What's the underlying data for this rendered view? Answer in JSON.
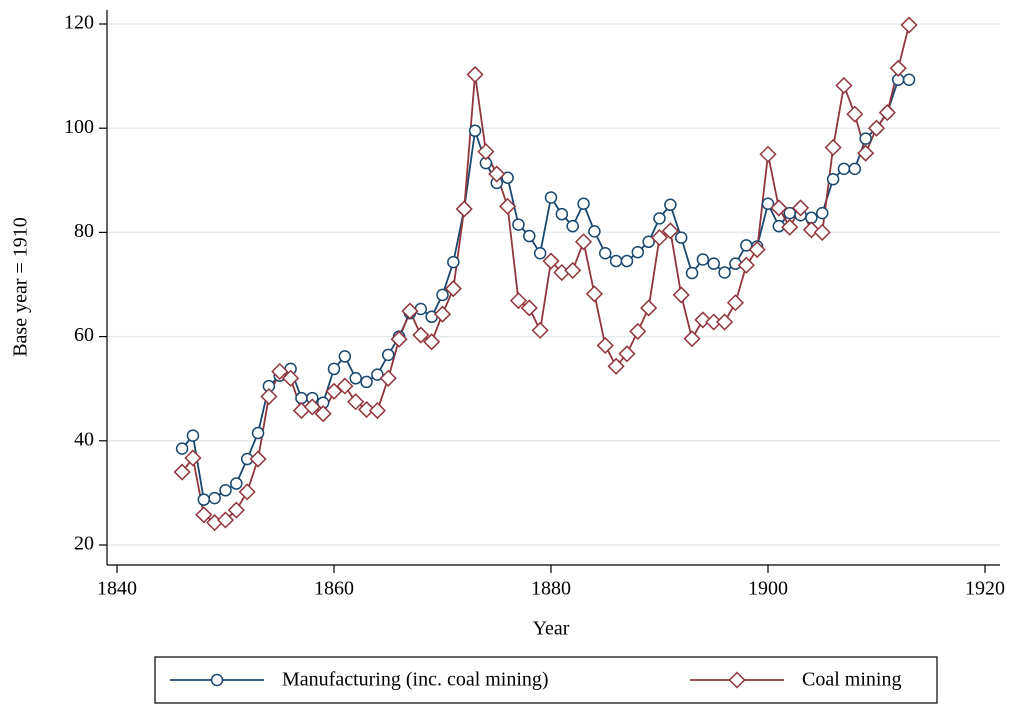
{
  "chart_data": {
    "type": "line",
    "x_label": "Year",
    "y_label": "Base year = 1910",
    "x": [
      1846,
      1847,
      1848,
      1849,
      1850,
      1851,
      1852,
      1853,
      1854,
      1855,
      1856,
      1857,
      1858,
      1859,
      1860,
      1861,
      1862,
      1863,
      1864,
      1865,
      1866,
      1867,
      1868,
      1869,
      1870,
      1871,
      1872,
      1873,
      1874,
      1875,
      1876,
      1877,
      1878,
      1879,
      1880,
      1881,
      1882,
      1883,
      1884,
      1885,
      1886,
      1887,
      1888,
      1889,
      1890,
      1891,
      1892,
      1893,
      1894,
      1895,
      1896,
      1897,
      1898,
      1899,
      1900,
      1901,
      1902,
      1903,
      1904,
      1905,
      1906,
      1907,
      1908,
      1909,
      1910,
      1911,
      1912,
      1913
    ],
    "series": [
      {
        "name": "Manufacturing (inc. coal mining)",
        "color": "#1a476f",
        "marker": "circle",
        "values": [
          38.5,
          41,
          28.7,
          29,
          30.5,
          31.8,
          36.5,
          41.5,
          50.5,
          52.5,
          53.8,
          48.2,
          48.2,
          47.3,
          53.8,
          56.2,
          52,
          51.3,
          52.7,
          56.5,
          60,
          64.5,
          65.3,
          63.8,
          68,
          74.3,
          84.5,
          99.5,
          93.3,
          89.5,
          90.5,
          81.5,
          79.3,
          76,
          86.7,
          83.5,
          81.2,
          85.5,
          80.2,
          76,
          74.5,
          74.5,
          76.2,
          78.2,
          82.7,
          85.3,
          79,
          72.2,
          74.8,
          74,
          72.3,
          74,
          77.5,
          77.3,
          85.5,
          81.2,
          83.7,
          83.3,
          82.8,
          83.7,
          90.2,
          92.2,
          92.2,
          98,
          100,
          103,
          109.3,
          109.3
        ]
      },
      {
        "name": "Coal mining",
        "color": "#90353b",
        "marker": "diamond",
        "values": [
          34,
          36.7,
          25.8,
          24.3,
          24.8,
          26.7,
          30.2,
          36.5,
          48.5,
          53.3,
          52,
          45.8,
          46.5,
          45.2,
          49.5,
          50.5,
          47.5,
          46,
          45.8,
          52,
          59.5,
          64.9,
          60.3,
          59,
          64.3,
          69.2,
          84.5,
          110.3,
          95.5,
          91.2,
          85,
          66.9,
          65.5,
          61.2,
          74.5,
          72.3,
          72.7,
          78.2,
          68.2,
          58.3,
          54.3,
          56.7,
          61,
          65.5,
          79,
          80.3,
          68,
          59.6,
          63.2,
          62.8,
          62.8,
          66.5,
          73.7,
          76.7,
          95,
          84.7,
          81,
          84.7,
          80.5,
          80,
          96.3,
          108.2,
          102.7,
          95.2,
          100,
          103,
          111.5,
          119.8
        ]
      }
    ],
    "xlim": [
      1840,
      1920
    ],
    "xticks": [
      1840,
      1860,
      1880,
      1900,
      1920
    ],
    "ylim": [
      20,
      120
    ],
    "yticks": [
      20,
      40,
      60,
      80,
      100,
      120
    ],
    "grid": true,
    "legend": "bottom"
  }
}
